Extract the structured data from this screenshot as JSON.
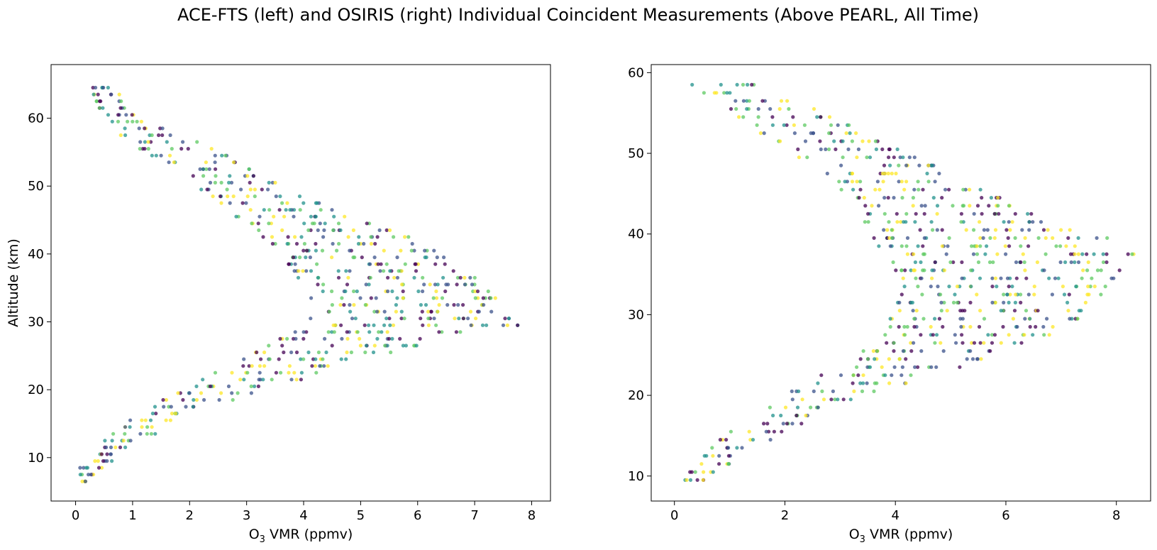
{
  "chart_data": {
    "suptitle": "ACE-FTS (left) and OSIRIS (right) Individual Coincident Measurements (Above PEARL, All Time)",
    "palette": [
      "#440154",
      "#3b528b",
      "#21918c",
      "#5ec962",
      "#fde725"
    ],
    "panels": [
      {
        "type": "scatter",
        "xlabel_main": "O",
        "xlabel_sub": "3",
        "xlabel_rest": " VMR (ppmv)",
        "ylabel": "Altitude (km)",
        "xlim": [
          -0.43,
          8.33
        ],
        "ylim": [
          3.6,
          67.9
        ],
        "xticks": [
          0,
          1,
          2,
          3,
          4,
          5,
          6,
          7,
          8
        ],
        "yticks": [
          10,
          20,
          30,
          40,
          50,
          60
        ],
        "altitude_range": [
          6.5,
          64.5
        ],
        "profile": [
          [
            6.5,
            0.1,
            0.2
          ],
          [
            8.5,
            0.0,
            0.5
          ],
          [
            10.5,
            0.2,
            0.8
          ],
          [
            12.5,
            0.5,
            1.2
          ],
          [
            14.5,
            0.8,
            1.6
          ],
          [
            16.5,
            1.1,
            2.1
          ],
          [
            18.5,
            1.4,
            2.8
          ],
          [
            20.5,
            1.9,
            3.6
          ],
          [
            22.5,
            2.4,
            4.4
          ],
          [
            24.5,
            2.8,
            5.2
          ],
          [
            26.5,
            3.3,
            6.0
          ],
          [
            28.5,
            3.8,
            7.0
          ],
          [
            29.5,
            4.0,
            7.9
          ],
          [
            31.5,
            4.2,
            7.6
          ],
          [
            33.5,
            4.1,
            7.4
          ],
          [
            35.5,
            4.0,
            7.2
          ],
          [
            37.5,
            3.8,
            7.0
          ],
          [
            39.5,
            3.6,
            6.6
          ],
          [
            41.5,
            3.4,
            6.1
          ],
          [
            43.5,
            3.1,
            5.6
          ],
          [
            45.5,
            2.8,
            4.9
          ],
          [
            47.5,
            2.5,
            4.4
          ],
          [
            49.5,
            2.2,
            3.8
          ],
          [
            51.5,
            1.8,
            3.3
          ],
          [
            53.5,
            1.5,
            2.9
          ],
          [
            55.5,
            1.1,
            2.5
          ],
          [
            57.5,
            0.7,
            1.9
          ],
          [
            59.5,
            0.5,
            1.3
          ],
          [
            61.5,
            0.4,
            0.9
          ],
          [
            63.5,
            0.3,
            0.8
          ],
          [
            64.5,
            0.3,
            0.7
          ]
        ]
      },
      {
        "type": "scatter",
        "xlabel_main": "O",
        "xlabel_sub": "3",
        "xlabel_rest": " VMR (ppmv)",
        "ylabel": "",
        "xlim": [
          -0.42,
          8.62
        ],
        "ylim": [
          6.9,
          61.0
        ],
        "xticks": [
          0,
          2,
          4,
          6,
          8
        ],
        "yticks": [
          10,
          20,
          30,
          40,
          50,
          60
        ],
        "altitude_range": [
          9.5,
          58.5
        ],
        "profile": [
          [
            9.5,
            0.1,
            0.6
          ],
          [
            11.5,
            0.3,
            1.0
          ],
          [
            13.5,
            0.6,
            1.5
          ],
          [
            15.5,
            0.9,
            2.0
          ],
          [
            17.5,
            1.3,
            2.6
          ],
          [
            19.5,
            1.8,
            3.2
          ],
          [
            21.5,
            2.4,
            4.2
          ],
          [
            23.5,
            2.9,
            5.2
          ],
          [
            25.5,
            3.3,
            6.0
          ],
          [
            27.5,
            3.6,
            6.9
          ],
          [
            29.5,
            3.8,
            7.4
          ],
          [
            31.5,
            4.0,
            7.7
          ],
          [
            33.5,
            4.1,
            7.9
          ],
          [
            35.5,
            4.0,
            8.1
          ],
          [
            37.5,
            3.8,
            8.4
          ],
          [
            39.5,
            3.6,
            7.9
          ],
          [
            41.5,
            3.4,
            6.8
          ],
          [
            43.5,
            3.2,
            6.2
          ],
          [
            45.5,
            3.0,
            5.7
          ],
          [
            47.5,
            2.6,
            5.0
          ],
          [
            49.5,
            2.2,
            4.4
          ],
          [
            51.5,
            1.7,
            3.8
          ],
          [
            53.5,
            1.3,
            3.2
          ],
          [
            55.5,
            0.9,
            2.6
          ],
          [
            57.5,
            0.5,
            1.6
          ],
          [
            58.5,
            0.3,
            1.5
          ]
        ]
      }
    ]
  }
}
